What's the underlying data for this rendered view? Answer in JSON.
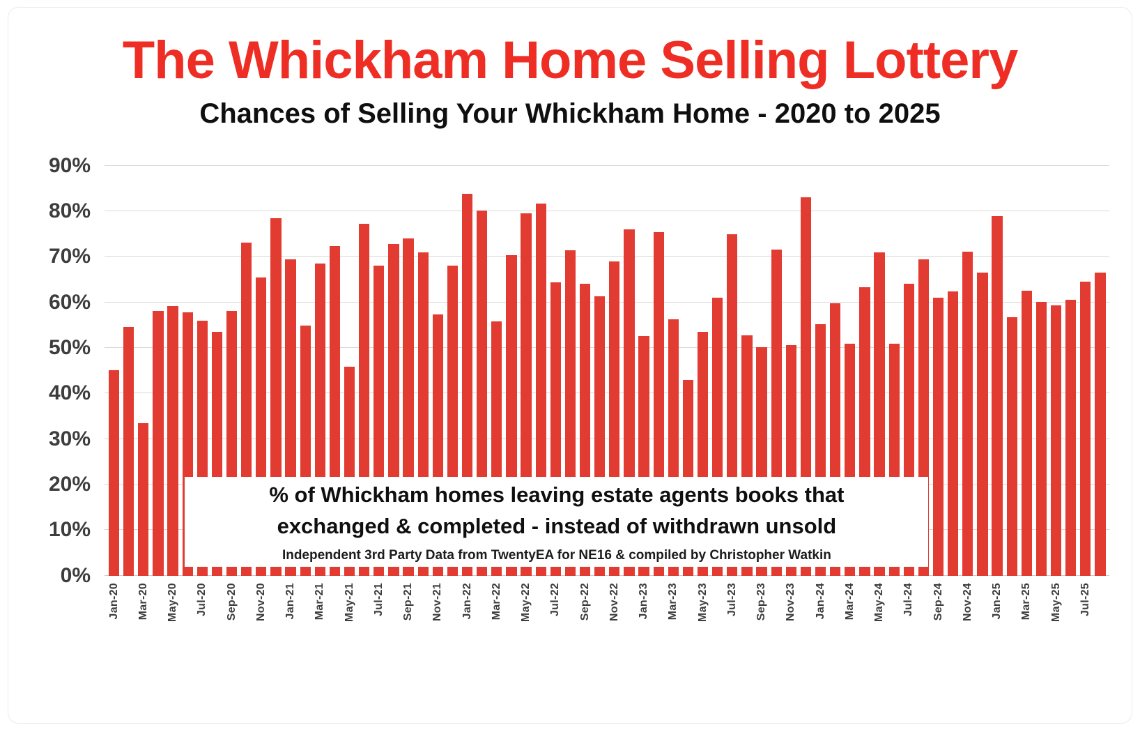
{
  "title": "The Whickham Home Selling Lottery",
  "subtitle": "Chances of Selling Your Whickham Home - 2020 to 2025",
  "annotation": {
    "line1": "% of Whickham homes leaving estate agents books that",
    "line2": "exchanged & completed - instead of withdrawn unsold",
    "line3": "Independent 3rd Party Data from TwentyEA for NE16 & compiled by Christopher Watkin"
  },
  "colors": {
    "bar": "#e23b31",
    "title": "#ee2e24",
    "grid": "#d9d9d9",
    "axis_text": "#3d3d3d"
  },
  "chart_data": {
    "type": "bar",
    "title": "The Whickham Home Selling Lottery",
    "subtitle": "Chances of Selling Your Whickham Home - 2020 to 2025",
    "ylabel": "",
    "xlabel": "",
    "ylim": [
      0,
      90
    ],
    "ytick_step": 10,
    "ytick_suffix": "%",
    "grid": true,
    "legend": "none",
    "x_label_every": 2,
    "categories": [
      "Jan-20",
      "Feb-20",
      "Mar-20",
      "Apr-20",
      "May-20",
      "Jun-20",
      "Jul-20",
      "Aug-20",
      "Sep-20",
      "Oct-20",
      "Nov-20",
      "Dec-20",
      "Jan-21",
      "Feb-21",
      "Mar-21",
      "Apr-21",
      "May-21",
      "Jun-21",
      "Jul-21",
      "Aug-21",
      "Sep-21",
      "Oct-21",
      "Nov-21",
      "Dec-21",
      "Jan-22",
      "Feb-22",
      "Mar-22",
      "Apr-22",
      "May-22",
      "Jun-22",
      "Jul-22",
      "Aug-22",
      "Sep-22",
      "Oct-22",
      "Nov-22",
      "Dec-22",
      "Jan-23",
      "Feb-23",
      "Mar-23",
      "Apr-23",
      "May-23",
      "Jun-23",
      "Jul-23",
      "Aug-23",
      "Sep-23",
      "Oct-23",
      "Nov-23",
      "Dec-23",
      "Jan-24",
      "Feb-24",
      "Mar-24",
      "Apr-24",
      "May-24",
      "Jun-24",
      "Jul-24",
      "Aug-24",
      "Sep-24",
      "Oct-24",
      "Nov-24",
      "Dec-24",
      "Jan-25",
      "Feb-25",
      "Mar-25",
      "Apr-25",
      "May-25",
      "Jun-25",
      "Jul-25",
      "Aug-25"
    ],
    "values": [
      45.2,
      54.6,
      33.5,
      58.2,
      59.2,
      57.9,
      56.0,
      53.6,
      58.2,
      73.2,
      65.5,
      78.5,
      69.4,
      54.9,
      68.6,
      72.4,
      45.9,
      77.3,
      68.1,
      72.8,
      74.0,
      71.0,
      57.4,
      68.1,
      83.9,
      80.1,
      55.9,
      70.4,
      79.6,
      81.7,
      64.4,
      71.5,
      64.1,
      61.4,
      69.0,
      76.1,
      52.6,
      75.5,
      56.3,
      43.0,
      53.6,
      61.0,
      75.0,
      52.8,
      50.1,
      71.6,
      50.7,
      83.1,
      55.2,
      59.8,
      51.0,
      63.4,
      71.0,
      51.0,
      64.1,
      69.5,
      61.0,
      62.4,
      71.2,
      66.5,
      78.9,
      56.8,
      62.6,
      60.1,
      59.3,
      60.6,
      64.5,
      66.6
    ]
  }
}
